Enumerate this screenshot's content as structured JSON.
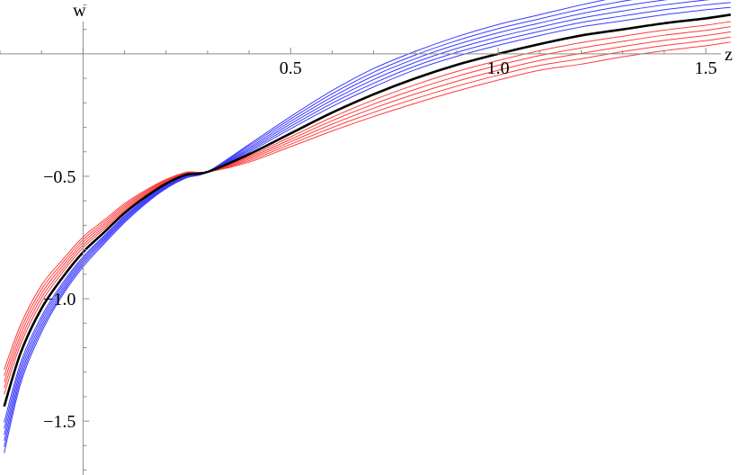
{
  "chart_data": {
    "type": "line",
    "xlabel": "z",
    "ylabel": "w",
    "xlim": [
      -0.2,
      1.58
    ],
    "ylim": [
      -1.72,
      0.22
    ],
    "x_ticks": [
      {
        "value": 0.5,
        "label": "0.5"
      },
      {
        "value": 1.0,
        "label": "1.0"
      },
      {
        "value": 1.5,
        "label": "1.5"
      }
    ],
    "y_ticks": [
      {
        "value": -0.5,
        "label": "−0.5"
      },
      {
        "value": -1.0,
        "label": "−1.0"
      },
      {
        "value": -1.5,
        "label": "−1.5"
      }
    ],
    "grid": false,
    "legend": "none",
    "colors": {
      "center": "#000000",
      "upper_family": "#3a3aff",
      "lower_family": "#ff3b3b"
    },
    "x": [
      -0.19,
      -0.15,
      -0.1,
      -0.05,
      0.0,
      0.05,
      0.1,
      0.15,
      0.2,
      0.25,
      0.3,
      0.4,
      0.5,
      0.6,
      0.7,
      0.8,
      0.9,
      1.0,
      1.1,
      1.2,
      1.3,
      1.4,
      1.5,
      1.56
    ],
    "series": [
      {
        "color": "#3a3aff",
        "values": [
          -1.63,
          -1.345,
          -1.137,
          -0.987,
          -0.87,
          -0.777,
          -0.689,
          -0.613,
          -0.55,
          -0.506,
          -0.482,
          -0.37,
          -0.256,
          -0.15,
          -0.06,
          0.01,
          0.07,
          0.12,
          0.16,
          0.2,
          0.235,
          0.26,
          0.28,
          0.29
        ]
      },
      {
        "color": "#3a3aff",
        "values": [
          -1.605,
          -1.328,
          -1.124,
          -0.978,
          -0.861,
          -0.77,
          -0.683,
          -0.609,
          -0.547,
          -0.504,
          -0.482,
          -0.376,
          -0.266,
          -0.163,
          -0.075,
          -0.005,
          0.054,
          0.103,
          0.143,
          0.182,
          0.215,
          0.24,
          0.26,
          0.27
        ]
      },
      {
        "color": "#3a3aff",
        "values": [
          -1.58,
          -1.311,
          -1.111,
          -0.968,
          -0.853,
          -0.763,
          -0.677,
          -0.605,
          -0.544,
          -0.502,
          -0.482,
          -0.383,
          -0.276,
          -0.176,
          -0.09,
          -0.02,
          0.038,
          0.086,
          0.126,
          0.164,
          0.195,
          0.22,
          0.24,
          0.25
        ]
      },
      {
        "color": "#3a3aff",
        "values": [
          -1.555,
          -1.294,
          -1.098,
          -0.958,
          -0.845,
          -0.757,
          -0.672,
          -0.601,
          -0.541,
          -0.5,
          -0.482,
          -0.389,
          -0.286,
          -0.189,
          -0.105,
          -0.035,
          0.022,
          0.069,
          0.109,
          0.146,
          0.175,
          0.2,
          0.22,
          0.23
        ]
      },
      {
        "color": "#3a3aff",
        "values": [
          -1.53,
          -1.277,
          -1.085,
          -0.948,
          -0.837,
          -0.75,
          -0.666,
          -0.597,
          -0.538,
          -0.498,
          -0.482,
          -0.395,
          -0.296,
          -0.202,
          -0.12,
          -0.05,
          0.006,
          0.052,
          0.092,
          0.128,
          0.155,
          0.18,
          0.2,
          0.21
        ]
      },
      {
        "color": "#3a3aff",
        "values": [
          -1.505,
          -1.26,
          -1.072,
          -0.938,
          -0.829,
          -0.744,
          -0.661,
          -0.593,
          -0.535,
          -0.496,
          -0.482,
          -0.401,
          -0.306,
          -0.215,
          -0.135,
          -0.065,
          -0.01,
          0.035,
          0.075,
          0.11,
          0.135,
          0.16,
          0.18,
          0.19
        ]
      },
      {
        "color": "#000000",
        "center": true,
        "values": [
          -1.44,
          -1.22,
          -1.04,
          -0.915,
          -0.81,
          -0.73,
          -0.65,
          -0.585,
          -0.53,
          -0.493,
          -0.482,
          -0.41,
          -0.325,
          -0.24,
          -0.165,
          -0.1,
          -0.045,
          0.0,
          0.04,
          0.075,
          0.1,
          0.125,
          0.145,
          0.16
        ]
      },
      {
        "color": "#ff3b3b",
        "values": [
          -1.39,
          -1.185,
          -1.013,
          -0.894,
          -0.792,
          -0.716,
          -0.64,
          -0.578,
          -0.525,
          -0.491,
          -0.482,
          -0.418,
          -0.339,
          -0.259,
          -0.188,
          -0.126,
          -0.072,
          -0.027,
          0.013,
          0.046,
          0.072,
          0.097,
          0.117,
          0.132
        ]
      },
      {
        "color": "#ff3b3b",
        "values": [
          -1.365,
          -1.165,
          -0.996,
          -0.881,
          -0.781,
          -0.707,
          -0.633,
          -0.573,
          -0.522,
          -0.489,
          -0.482,
          -0.424,
          -0.349,
          -0.273,
          -0.205,
          -0.145,
          -0.092,
          -0.047,
          -0.007,
          0.024,
          0.051,
          0.076,
          0.096,
          0.111
        ]
      },
      {
        "color": "#ff3b3b",
        "values": [
          -1.34,
          -1.145,
          -0.979,
          -0.868,
          -0.77,
          -0.698,
          -0.626,
          -0.568,
          -0.519,
          -0.487,
          -0.482,
          -0.43,
          -0.359,
          -0.287,
          -0.222,
          -0.164,
          -0.112,
          -0.067,
          -0.027,
          0.002,
          0.03,
          0.055,
          0.075,
          0.09
        ]
      },
      {
        "color": "#ff3b3b",
        "values": [
          -1.315,
          -1.125,
          -0.962,
          -0.855,
          -0.759,
          -0.689,
          -0.619,
          -0.563,
          -0.516,
          -0.485,
          -0.482,
          -0.436,
          -0.369,
          -0.301,
          -0.239,
          -0.183,
          -0.132,
          -0.087,
          -0.047,
          -0.02,
          0.009,
          0.034,
          0.054,
          0.069
        ]
      },
      {
        "color": "#ff3b3b",
        "values": [
          -1.29,
          -1.105,
          -0.945,
          -0.842,
          -0.748,
          -0.68,
          -0.612,
          -0.558,
          -0.513,
          -0.483,
          -0.482,
          -0.442,
          -0.379,
          -0.315,
          -0.256,
          -0.202,
          -0.152,
          -0.107,
          -0.067,
          -0.042,
          -0.012,
          0.013,
          0.033,
          0.048
        ]
      }
    ]
  }
}
